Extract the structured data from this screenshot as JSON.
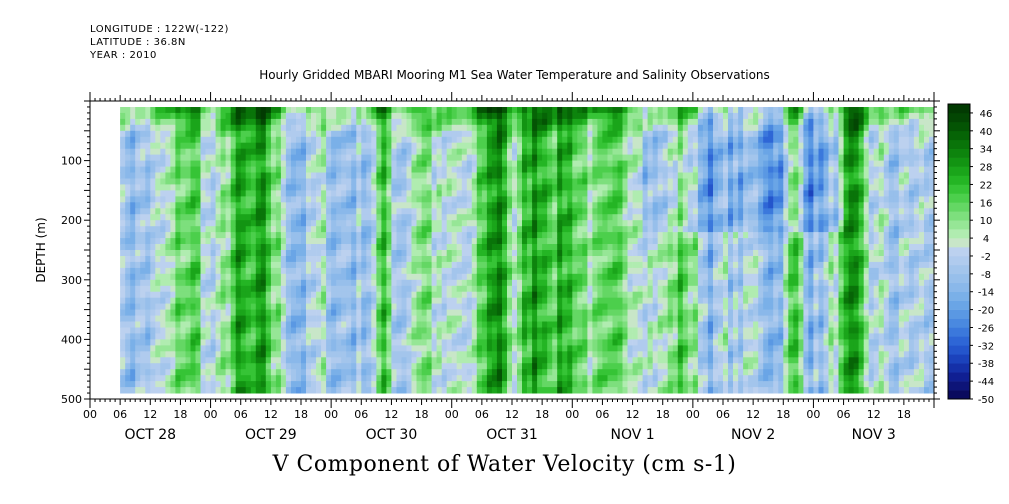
{
  "header": {
    "longitude": "LONGITUDE : 122W(-122)",
    "latitude": "LATITUDE : 36.8N",
    "year": "YEAR : 2010"
  },
  "chart_data": {
    "type": "heatmap",
    "title": "Hourly Gridded MBARI Mooring M1 Sea Water Temperature and Salinity Observations",
    "xlabel": "V Component of Water Velocity (cm s-1)",
    "ylabel": "DEPTH (m)",
    "ylim": [
      500,
      0
    ],
    "y_ticks": [
      100,
      200,
      300,
      400,
      500
    ],
    "x_hour_ticks": [
      "00",
      "06",
      "12",
      "18",
      "00",
      "06",
      "12",
      "18",
      "00",
      "06",
      "12",
      "18",
      "00",
      "06",
      "12",
      "18",
      "00",
      "06",
      "12",
      "18",
      "00",
      "06",
      "12",
      "18",
      "00",
      "06",
      "12",
      "18"
    ],
    "x_date_labels": [
      "OCT 28",
      "OCT 29",
      "OCT 30",
      "OCT 31",
      "NOV  1",
      "NOV  2",
      "NOV  3"
    ],
    "x_range_hours": [
      0,
      168
    ],
    "data_extent": {
      "x_hours": [
        6,
        168
      ],
      "depth_m": [
        10,
        490
      ]
    },
    "colorbar": {
      "labels": [
        "46",
        "40",
        "34",
        "28",
        "22",
        "16",
        "10",
        "4",
        "-2",
        "-8",
        "-14",
        "-20",
        "-26",
        "-32",
        "-38",
        "-44",
        "-50"
      ],
      "levels": [
        -50,
        -47,
        -44,
        -41,
        -38,
        -35,
        -32,
        -29,
        -26,
        -23,
        -20,
        -17,
        -14,
        -11,
        -8,
        -5,
        -2,
        1,
        4,
        7,
        10,
        13,
        16,
        19,
        22,
        25,
        28,
        31,
        34,
        37,
        40,
        43,
        46,
        49
      ],
      "colors": [
        "#0a0a5e",
        "#0d1478",
        "#101f92",
        "#1530a8",
        "#1b42bc",
        "#2455cc",
        "#2e66d6",
        "#3b78dc",
        "#4a89e0",
        "#5a98e3",
        "#6aa5e6",
        "#7ab0e8",
        "#8ab8ea",
        "#97bfeb",
        "#a3c5ec",
        "#b0cbee",
        "#bcd1ef",
        "#c8e6c8",
        "#b0ecb0",
        "#96e696",
        "#7ddf7d",
        "#64d764",
        "#4ccf4c",
        "#36c436",
        "#24b524",
        "#1aa51a",
        "#129412",
        "#0d840d",
        "#097409",
        "#066406",
        "#045404",
        "#034603",
        "#023a02"
      ]
    }
  }
}
